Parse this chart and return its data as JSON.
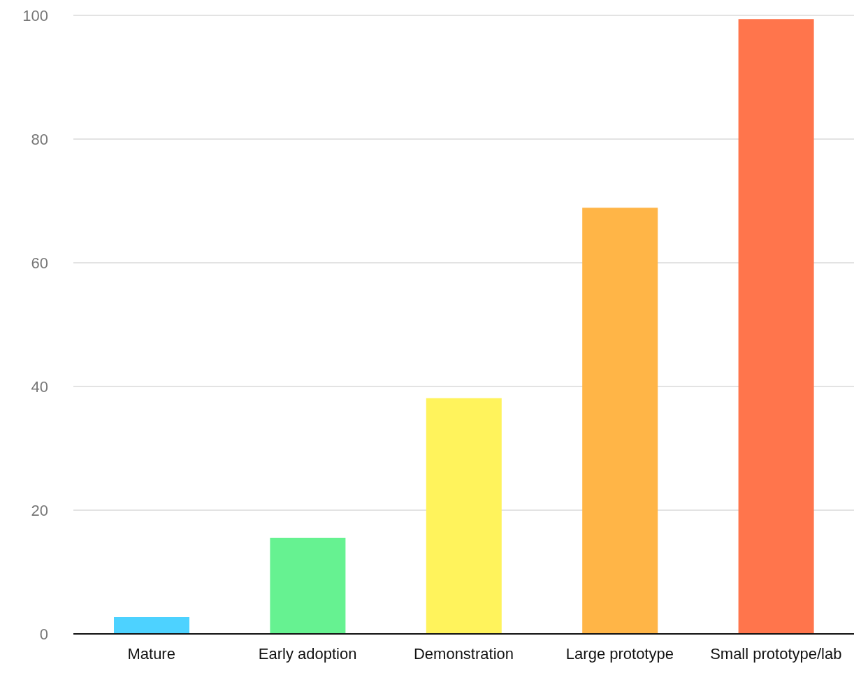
{
  "chart_data": {
    "type": "bar",
    "categories": [
      "Mature",
      "Early adoption",
      "Demonstration",
      "Large prototype",
      "Small prototype/lab"
    ],
    "values": [
      2.7,
      15.5,
      38.1,
      68.9,
      99.4
    ],
    "colors": [
      "#4dd2ff",
      "#66f291",
      "#fff35c",
      "#ffb547",
      "#ff754c"
    ],
    "ylim": [
      0,
      100
    ],
    "yticks": [
      0,
      20,
      40,
      60,
      80,
      100
    ],
    "grid": "y"
  }
}
